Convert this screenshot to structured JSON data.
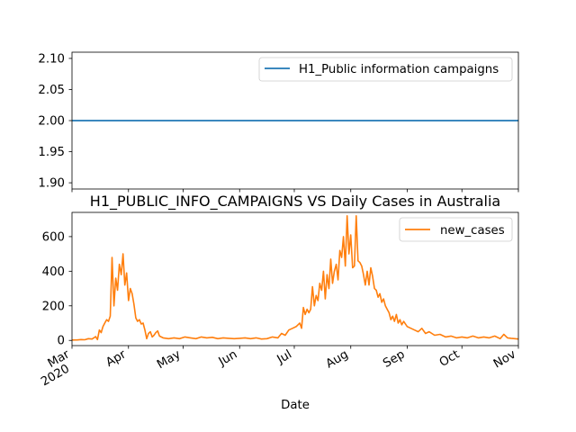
{
  "chart_data": [
    {
      "type": "line",
      "title": "",
      "xlabel": "",
      "ylabel": "",
      "ylim": [
        1.89,
        2.11
      ],
      "yticks": [
        "1.90",
        "1.95",
        "2.00",
        "2.05",
        "2.10"
      ],
      "legend": "upper right",
      "series": [
        {
          "name": "H1_Public information campaigns",
          "color": "#1f77b4",
          "x": [
            "2020-03-01",
            "2020-11-01"
          ],
          "values": [
            2.0,
            2.0
          ]
        }
      ]
    },
    {
      "type": "line",
      "title": "H1_PUBLIC_INFO_CAMPAIGNS VS Daily Cases in Australia",
      "xlabel": "Date",
      "ylabel": "",
      "ylim": [
        -30,
        740
      ],
      "yticks": [
        "0",
        "200",
        "400",
        "600"
      ],
      "xticks": [
        {
          "date": "2020-03-01",
          "label": "Mar",
          "year": "2020"
        },
        {
          "date": "2020-04-01",
          "label": "Apr"
        },
        {
          "date": "2020-05-01",
          "label": "May"
        },
        {
          "date": "2020-06-01",
          "label": "Jun"
        },
        {
          "date": "2020-07-01",
          "label": "Jul"
        },
        {
          "date": "2020-08-01",
          "label": "Aug"
        },
        {
          "date": "2020-09-01",
          "label": "Sep"
        },
        {
          "date": "2020-10-01",
          "label": "Oct"
        },
        {
          "date": "2020-11-01",
          "label": "Nov"
        }
      ],
      "legend": "upper right",
      "series": [
        {
          "name": "new_cases",
          "color": "#ff7f0e",
          "points": [
            [
              "2020-03-01",
              2
            ],
            [
              "2020-03-04",
              3
            ],
            [
              "2020-03-06",
              5
            ],
            [
              "2020-03-08",
              4
            ],
            [
              "2020-03-10",
              10
            ],
            [
              "2020-03-12",
              8
            ],
            [
              "2020-03-14",
              22
            ],
            [
              "2020-03-15",
              5
            ],
            [
              "2020-03-16",
              60
            ],
            [
              "2020-03-17",
              45
            ],
            [
              "2020-03-18",
              80
            ],
            [
              "2020-03-19",
              100
            ],
            [
              "2020-03-20",
              120
            ],
            [
              "2020-03-21",
              110
            ],
            [
              "2020-03-22",
              140
            ],
            [
              "2020-03-23",
              480
            ],
            [
              "2020-03-24",
              200
            ],
            [
              "2020-03-25",
              360
            ],
            [
              "2020-03-26",
              290
            ],
            [
              "2020-03-27",
              440
            ],
            [
              "2020-03-28",
              380
            ],
            [
              "2020-03-29",
              500
            ],
            [
              "2020-03-30",
              320
            ],
            [
              "2020-03-31",
              390
            ],
            [
              "2020-04-01",
              230
            ],
            [
              "2020-04-02",
              300
            ],
            [
              "2020-04-03",
              270
            ],
            [
              "2020-04-04",
              210
            ],
            [
              "2020-04-05",
              130
            ],
            [
              "2020-04-06",
              110
            ],
            [
              "2020-04-07",
              120
            ],
            [
              "2020-04-08",
              95
            ],
            [
              "2020-04-09",
              100
            ],
            [
              "2020-04-10",
              60
            ],
            [
              "2020-04-11",
              10
            ],
            [
              "2020-04-12",
              40
            ],
            [
              "2020-04-13",
              50
            ],
            [
              "2020-04-14",
              20
            ],
            [
              "2020-04-15",
              30
            ],
            [
              "2020-04-16",
              45
            ],
            [
              "2020-04-17",
              55
            ],
            [
              "2020-04-18",
              25
            ],
            [
              "2020-04-19",
              20
            ],
            [
              "2020-04-20",
              15
            ],
            [
              "2020-04-23",
              10
            ],
            [
              "2020-04-26",
              15
            ],
            [
              "2020-04-29",
              10
            ],
            [
              "2020-05-02",
              20
            ],
            [
              "2020-05-05",
              15
            ],
            [
              "2020-05-08",
              10
            ],
            [
              "2020-05-11",
              20
            ],
            [
              "2020-05-14",
              15
            ],
            [
              "2020-05-17",
              18
            ],
            [
              "2020-05-20",
              10
            ],
            [
              "2020-05-23",
              15
            ],
            [
              "2020-05-26",
              12
            ],
            [
              "2020-05-29",
              10
            ],
            [
              "2020-06-01",
              12
            ],
            [
              "2020-06-04",
              15
            ],
            [
              "2020-06-07",
              10
            ],
            [
              "2020-06-10",
              15
            ],
            [
              "2020-06-13",
              8
            ],
            [
              "2020-06-16",
              10
            ],
            [
              "2020-06-19",
              20
            ],
            [
              "2020-06-22",
              15
            ],
            [
              "2020-06-24",
              40
            ],
            [
              "2020-06-26",
              30
            ],
            [
              "2020-06-28",
              60
            ],
            [
              "2020-06-30",
              70
            ],
            [
              "2020-07-02",
              80
            ],
            [
              "2020-07-04",
              100
            ],
            [
              "2020-07-05",
              70
            ],
            [
              "2020-07-06",
              190
            ],
            [
              "2020-07-07",
              150
            ],
            [
              "2020-07-08",
              180
            ],
            [
              "2020-07-09",
              160
            ],
            [
              "2020-07-10",
              180
            ],
            [
              "2020-07-11",
              310
            ],
            [
              "2020-07-12",
              200
            ],
            [
              "2020-07-13",
              260
            ],
            [
              "2020-07-14",
              230
            ],
            [
              "2020-07-15",
              330
            ],
            [
              "2020-07-16",
              290
            ],
            [
              "2020-07-17",
              400
            ],
            [
              "2020-07-18",
              240
            ],
            [
              "2020-07-19",
              380
            ],
            [
              "2020-07-20",
              300
            ],
            [
              "2020-07-21",
              470
            ],
            [
              "2020-07-22",
              330
            ],
            [
              "2020-07-23",
              400
            ],
            [
              "2020-07-24",
              440
            ],
            [
              "2020-07-25",
              350
            ],
            [
              "2020-07-26",
              520
            ],
            [
              "2020-07-27",
              480
            ],
            [
              "2020-07-28",
              600
            ],
            [
              "2020-07-29",
              430
            ],
            [
              "2020-07-30",
              720
            ],
            [
              "2020-07-31",
              500
            ],
            [
              "2020-08-01",
              610
            ],
            [
              "2020-08-02",
              420
            ],
            [
              "2020-08-03",
              430
            ],
            [
              "2020-08-04",
              720
            ],
            [
              "2020-08-05",
              460
            ],
            [
              "2020-08-06",
              450
            ],
            [
              "2020-08-07",
              430
            ],
            [
              "2020-08-08",
              380
            ],
            [
              "2020-08-09",
              320
            ],
            [
              "2020-08-10",
              400
            ],
            [
              "2020-08-11",
              320
            ],
            [
              "2020-08-12",
              420
            ],
            [
              "2020-08-13",
              370
            ],
            [
              "2020-08-14",
              300
            ],
            [
              "2020-08-15",
              290
            ],
            [
              "2020-08-16",
              250
            ],
            [
              "2020-08-17",
              270
            ],
            [
              "2020-08-18",
              220
            ],
            [
              "2020-08-19",
              240
            ],
            [
              "2020-08-20",
              200
            ],
            [
              "2020-08-21",
              180
            ],
            [
              "2020-08-22",
              160
            ],
            [
              "2020-08-23",
              120
            ],
            [
              "2020-08-24",
              140
            ],
            [
              "2020-08-25",
              110
            ],
            [
              "2020-08-26",
              150
            ],
            [
              "2020-08-27",
              100
            ],
            [
              "2020-08-28",
              120
            ],
            [
              "2020-08-29",
              90
            ],
            [
              "2020-08-30",
              110
            ],
            [
              "2020-09-01",
              80
            ],
            [
              "2020-09-03",
              70
            ],
            [
              "2020-09-05",
              60
            ],
            [
              "2020-09-07",
              50
            ],
            [
              "2020-09-09",
              70
            ],
            [
              "2020-09-11",
              40
            ],
            [
              "2020-09-13",
              50
            ],
            [
              "2020-09-16",
              30
            ],
            [
              "2020-09-19",
              35
            ],
            [
              "2020-09-22",
              20
            ],
            [
              "2020-09-25",
              25
            ],
            [
              "2020-09-28",
              15
            ],
            [
              "2020-10-01",
              20
            ],
            [
              "2020-10-04",
              15
            ],
            [
              "2020-10-07",
              25
            ],
            [
              "2020-10-10",
              15
            ],
            [
              "2020-10-13",
              20
            ],
            [
              "2020-10-16",
              15
            ],
            [
              "2020-10-19",
              25
            ],
            [
              "2020-10-22",
              10
            ],
            [
              "2020-10-24",
              35
            ],
            [
              "2020-10-26",
              15
            ],
            [
              "2020-10-28",
              12
            ],
            [
              "2020-10-30",
              10
            ],
            [
              "2020-11-01",
              8
            ]
          ]
        }
      ]
    }
  ]
}
